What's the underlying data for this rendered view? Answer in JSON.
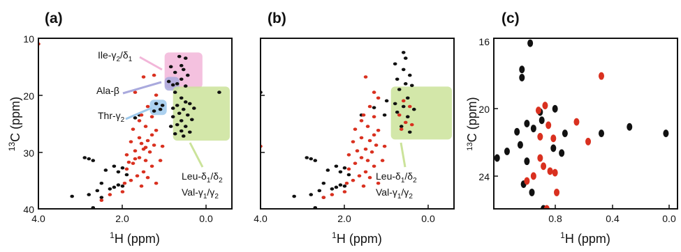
{
  "chart_data": [
    {
      "panel": "(a)",
      "type": "scatter",
      "xlabel": "1H (ppm)",
      "ylabel": "13C (ppm)",
      "xlim": [
        4.0,
        -0.6
      ],
      "ylim": [
        10,
        40
      ],
      "x_ticks": [
        "4.0",
        "2.0",
        "0.0"
      ],
      "y_ticks": [
        "10",
        "20",
        "30",
        "40"
      ],
      "annotations": [
        "Ile-γ2/δ1",
        "Ala-β",
        "Thr-γ2",
        "Leu-δ1/δ2",
        "Val-γ1/γ2"
      ],
      "regions": [
        {
          "label": "Ile-γ2/δ1",
          "x": [
            1.0,
            0.1
          ],
          "y": [
            12.5,
            18.8
          ],
          "color": "#f2b6d9"
        },
        {
          "label": "Ala-β",
          "x": [
            1.0,
            0.65
          ],
          "y": [
            16.8,
            19.2
          ],
          "color": "#a9a9dd"
        },
        {
          "label": "Thr-γ2",
          "x": [
            1.35,
            0.95
          ],
          "y": [
            20.8,
            23.5
          ],
          "color": "#9ec9ec"
        },
        {
          "label": "Leu-δ1/δ2 Val-γ1/γ2",
          "x": [
            0.8,
            -0.55
          ],
          "y": [
            18.5,
            28.0
          ],
          "color": "#cbe39a"
        }
      ],
      "series": [
        {
          "color": "#111111",
          "points": [
            [
              0.65,
              13.2
            ],
            [
              0.5,
              13.5
            ],
            [
              0.6,
              14.8
            ],
            [
              0.85,
              15.0
            ],
            [
              0.55,
              15.5
            ],
            [
              0.75,
              16.0
            ],
            [
              0.45,
              16.5
            ],
            [
              0.6,
              17.2
            ],
            [
              0.9,
              17.6
            ],
            [
              0.7,
              18.0
            ],
            [
              0.5,
              18.4
            ],
            [
              0.8,
              18.2
            ],
            [
              0.75,
              19.5
            ],
            [
              0.6,
              20.5
            ],
            [
              0.5,
              21.2
            ],
            [
              0.7,
              21.8
            ],
            [
              0.4,
              21.5
            ],
            [
              0.8,
              22.3
            ],
            [
              0.55,
              22.5
            ],
            [
              0.3,
              22.3
            ],
            [
              0.65,
              23.2
            ],
            [
              0.45,
              23.5
            ],
            [
              0.8,
              23.8
            ],
            [
              0.6,
              24.5
            ],
            [
              0.35,
              24.3
            ],
            [
              0.7,
              25.2
            ],
            [
              0.5,
              25.5
            ],
            [
              0.85,
              25.5
            ],
            [
              0.6,
              26.3
            ],
            [
              0.4,
              26.5
            ],
            [
              0.75,
              26.8
            ],
            [
              0.55,
              27.2
            ],
            [
              1.2,
              21.5
            ],
            [
              1.1,
              22.5
            ],
            [
              1.25,
              22.8
            ],
            [
              1.05,
              21.8
            ],
            [
              -0.3,
              19.5
            ],
            [
              1.6,
              23.5
            ],
            [
              1.7,
              24.0
            ],
            [
              2.2,
              36.2
            ],
            [
              2.0,
              36.0
            ],
            [
              2.1,
              35.8
            ],
            [
              2.3,
              36.5
            ],
            [
              2.6,
              36.8
            ],
            [
              2.8,
              37.5
            ],
            [
              2.5,
              38.0
            ],
            [
              3.2,
              37.8
            ],
            [
              2.7,
              39.8
            ],
            [
              2.9,
              40.2
            ],
            [
              2.2,
              32.5
            ],
            [
              2.0,
              32.8
            ],
            [
              2.1,
              33.5
            ],
            [
              2.4,
              33.2
            ],
            [
              1.9,
              34.0
            ],
            [
              2.8,
              31.2
            ],
            [
              2.7,
              31.5
            ],
            [
              2.9,
              31.0
            ],
            [
              2.5,
              35.5
            ]
          ]
        },
        {
          "color": "#d9301f",
          "points": [
            [
              4.0,
              11.0
            ],
            [
              1.5,
              16.8
            ],
            [
              1.25,
              16.5
            ],
            [
              1.7,
              19.5
            ],
            [
              1.2,
              20.0
            ],
            [
              1.4,
              22.0
            ],
            [
              1.55,
              23.5
            ],
            [
              1.3,
              23.8
            ],
            [
              1.6,
              24.5
            ],
            [
              1.45,
              25.5
            ],
            [
              1.75,
              26.0
            ],
            [
              1.2,
              26.2
            ],
            [
              1.6,
              27.5
            ],
            [
              1.4,
              28.0
            ],
            [
              1.8,
              28.2
            ],
            [
              1.25,
              28.8
            ],
            [
              1.5,
              29.5
            ],
            [
              1.7,
              29.8
            ],
            [
              1.35,
              30.0
            ],
            [
              1.9,
              30.5
            ],
            [
              1.6,
              31.0
            ],
            [
              1.45,
              31.5
            ],
            [
              1.75,
              32.0
            ],
            [
              1.3,
              32.5
            ],
            [
              1.9,
              33.0
            ],
            [
              1.5,
              33.5
            ],
            [
              1.65,
              34.2
            ],
            [
              1.4,
              34.5
            ],
            [
              1.8,
              35.0
            ],
            [
              1.95,
              35.5
            ],
            [
              1.55,
              36.0
            ],
            [
              2.0,
              37.0
            ],
            [
              2.3,
              37.5
            ],
            [
              2.5,
              38.5
            ],
            [
              1.2,
              35.5
            ],
            [
              1.1,
              31.5
            ],
            [
              1.05,
              29.0
            ],
            [
              1.3,
              27.0
            ],
            [
              1.55,
              28.5
            ],
            [
              1.7,
              31.2
            ],
            [
              1.45,
              29.2
            ],
            [
              1.85,
              31.8
            ]
          ]
        }
      ]
    },
    {
      "panel": "(b)",
      "type": "scatter",
      "xlabel": "1H (ppm)",
      "xlim": [
        4.0,
        -0.6
      ],
      "ylim": [
        10,
        40
      ],
      "x_ticks": [
        "4.0",
        "2.0",
        "0.0"
      ],
      "annotations": [
        "Leu-δ1/δ2",
        "Val-γ1/γ2"
      ],
      "regions": [
        {
          "label": "Leu-δ1/δ2 Val-γ1/γ2",
          "x": [
            0.9,
            -0.55
          ],
          "y": [
            18.5,
            27.8
          ],
          "color": "#cbe39a"
        }
      ],
      "series": [
        {
          "color": "#111111",
          "points": [
            [
              0.6,
              12.5
            ],
            [
              0.55,
              13.5
            ],
            [
              0.8,
              14.5
            ],
            [
              0.6,
              15.5
            ],
            [
              0.45,
              16.5
            ],
            [
              0.75,
              17.2
            ],
            [
              0.55,
              18.0
            ],
            [
              0.4,
              18.3
            ],
            [
              0.7,
              19.0
            ],
            [
              0.5,
              20.5
            ],
            [
              0.8,
              21.5
            ],
            [
              0.6,
              22.0
            ],
            [
              0.35,
              22.5
            ],
            [
              0.75,
              23.0
            ],
            [
              0.5,
              23.8
            ],
            [
              0.65,
              25.5
            ],
            [
              0.45,
              26.5
            ],
            [
              1.3,
              22.2
            ],
            [
              1.0,
              21.0
            ],
            [
              1.05,
              23.5
            ],
            [
              4.0,
              19.5
            ],
            [
              2.2,
              36.2
            ],
            [
              2.0,
              36.0
            ],
            [
              2.1,
              35.8
            ],
            [
              2.3,
              36.5
            ],
            [
              2.6,
              36.8
            ],
            [
              2.8,
              37.5
            ],
            [
              2.5,
              38.0
            ],
            [
              3.2,
              37.8
            ],
            [
              2.7,
              39.8
            ],
            [
              2.9,
              40.2
            ],
            [
              2.2,
              32.5
            ],
            [
              2.0,
              32.8
            ],
            [
              2.1,
              33.5
            ],
            [
              2.4,
              33.2
            ],
            [
              1.9,
              34.0
            ],
            [
              2.8,
              31.2
            ],
            [
              2.7,
              31.5
            ],
            [
              2.9,
              31.0
            ],
            [
              2.5,
              35.5
            ],
            [
              1.6,
              23.5
            ]
          ]
        },
        {
          "color": "#d9301f",
          "points": [
            [
              4.0,
              29.0
            ],
            [
              1.5,
              16.8
            ],
            [
              1.3,
              19.5
            ],
            [
              1.2,
              20.5
            ],
            [
              1.4,
              22.0
            ],
            [
              0.6,
              21.0
            ],
            [
              0.45,
              22.0
            ],
            [
              0.7,
              23.5
            ],
            [
              0.55,
              24.8
            ],
            [
              0.4,
              25.2
            ],
            [
              0.65,
              26.0
            ],
            [
              1.55,
              23.5
            ],
            [
              1.3,
              23.8
            ],
            [
              1.6,
              24.5
            ],
            [
              1.45,
              25.5
            ],
            [
              1.75,
              26.0
            ],
            [
              1.2,
              26.2
            ],
            [
              1.6,
              27.5
            ],
            [
              1.4,
              28.0
            ],
            [
              1.8,
              28.2
            ],
            [
              1.25,
              28.8
            ],
            [
              1.5,
              29.5
            ],
            [
              1.7,
              29.8
            ],
            [
              1.35,
              30.0
            ],
            [
              1.9,
              30.5
            ],
            [
              1.6,
              31.0
            ],
            [
              1.45,
              31.5
            ],
            [
              1.75,
              32.0
            ],
            [
              1.3,
              32.5
            ],
            [
              1.9,
              33.0
            ],
            [
              1.5,
              33.5
            ],
            [
              1.65,
              34.2
            ],
            [
              1.4,
              34.5
            ],
            [
              1.8,
              35.0
            ],
            [
              1.95,
              35.5
            ],
            [
              1.55,
              36.0
            ],
            [
              2.0,
              37.0
            ],
            [
              2.3,
              37.5
            ],
            [
              2.5,
              38.0
            ],
            [
              1.2,
              35.5
            ],
            [
              1.1,
              31.5
            ],
            [
              1.05,
              29.0
            ],
            [
              1.3,
              27.0
            ]
          ]
        }
      ]
    },
    {
      "panel": "(c)",
      "type": "scatter",
      "xlabel": "1H (ppm)",
      "ylabel": "13C (ppm)",
      "xlim": [
        1.06,
        -0.05
      ],
      "ylim": [
        16,
        26.4
      ],
      "x_ticks": [
        "0.8",
        "0.4",
        "0.0"
      ],
      "y_ticks": [
        "16",
        "20",
        "24"
      ],
      "series": [
        {
          "color": "#111111",
          "points": [
            [
              0.84,
              16.3
            ],
            [
              0.89,
              17.9
            ],
            [
              0.89,
              18.4
            ],
            [
              0.69,
              20.3
            ],
            [
              0.78,
              20.5
            ],
            [
              0.86,
              21.2
            ],
            [
              0.92,
              21.7
            ],
            [
              0.82,
              21.5
            ],
            [
              0.77,
              21.0
            ],
            [
              0.63,
              21.8
            ],
            [
              0.7,
              22.7
            ],
            [
              0.65,
              23.0
            ],
            [
              0.86,
              23.5
            ],
            [
              0.98,
              22.9
            ],
            [
              0.9,
              22.5
            ],
            [
              0.41,
              21.8
            ],
            [
              0.24,
              21.4
            ],
            [
              0.02,
              21.8
            ],
            [
              0.88,
              24.9
            ],
            [
              0.83,
              25.4
            ],
            [
              0.76,
              26.4
            ],
            [
              1.04,
              23.3
            ]
          ]
        },
        {
          "color": "#d9301f",
          "points": [
            [
              0.41,
              18.3
            ],
            [
              0.75,
              20.1
            ],
            [
              0.79,
              20.4
            ],
            [
              0.73,
              21.3
            ],
            [
              0.56,
              21.1
            ],
            [
              0.78,
              22.0
            ],
            [
              0.7,
              22.1
            ],
            [
              0.49,
              22.3
            ],
            [
              0.78,
              23.3
            ],
            [
              0.76,
              23.8
            ],
            [
              0.72,
              24.1
            ],
            [
              0.82,
              24.4
            ],
            [
              0.69,
              24.2
            ],
            [
              0.68,
              25.4
            ],
            [
              0.86,
              24.7
            ],
            [
              0.74,
              26.4
            ]
          ]
        }
      ]
    }
  ]
}
